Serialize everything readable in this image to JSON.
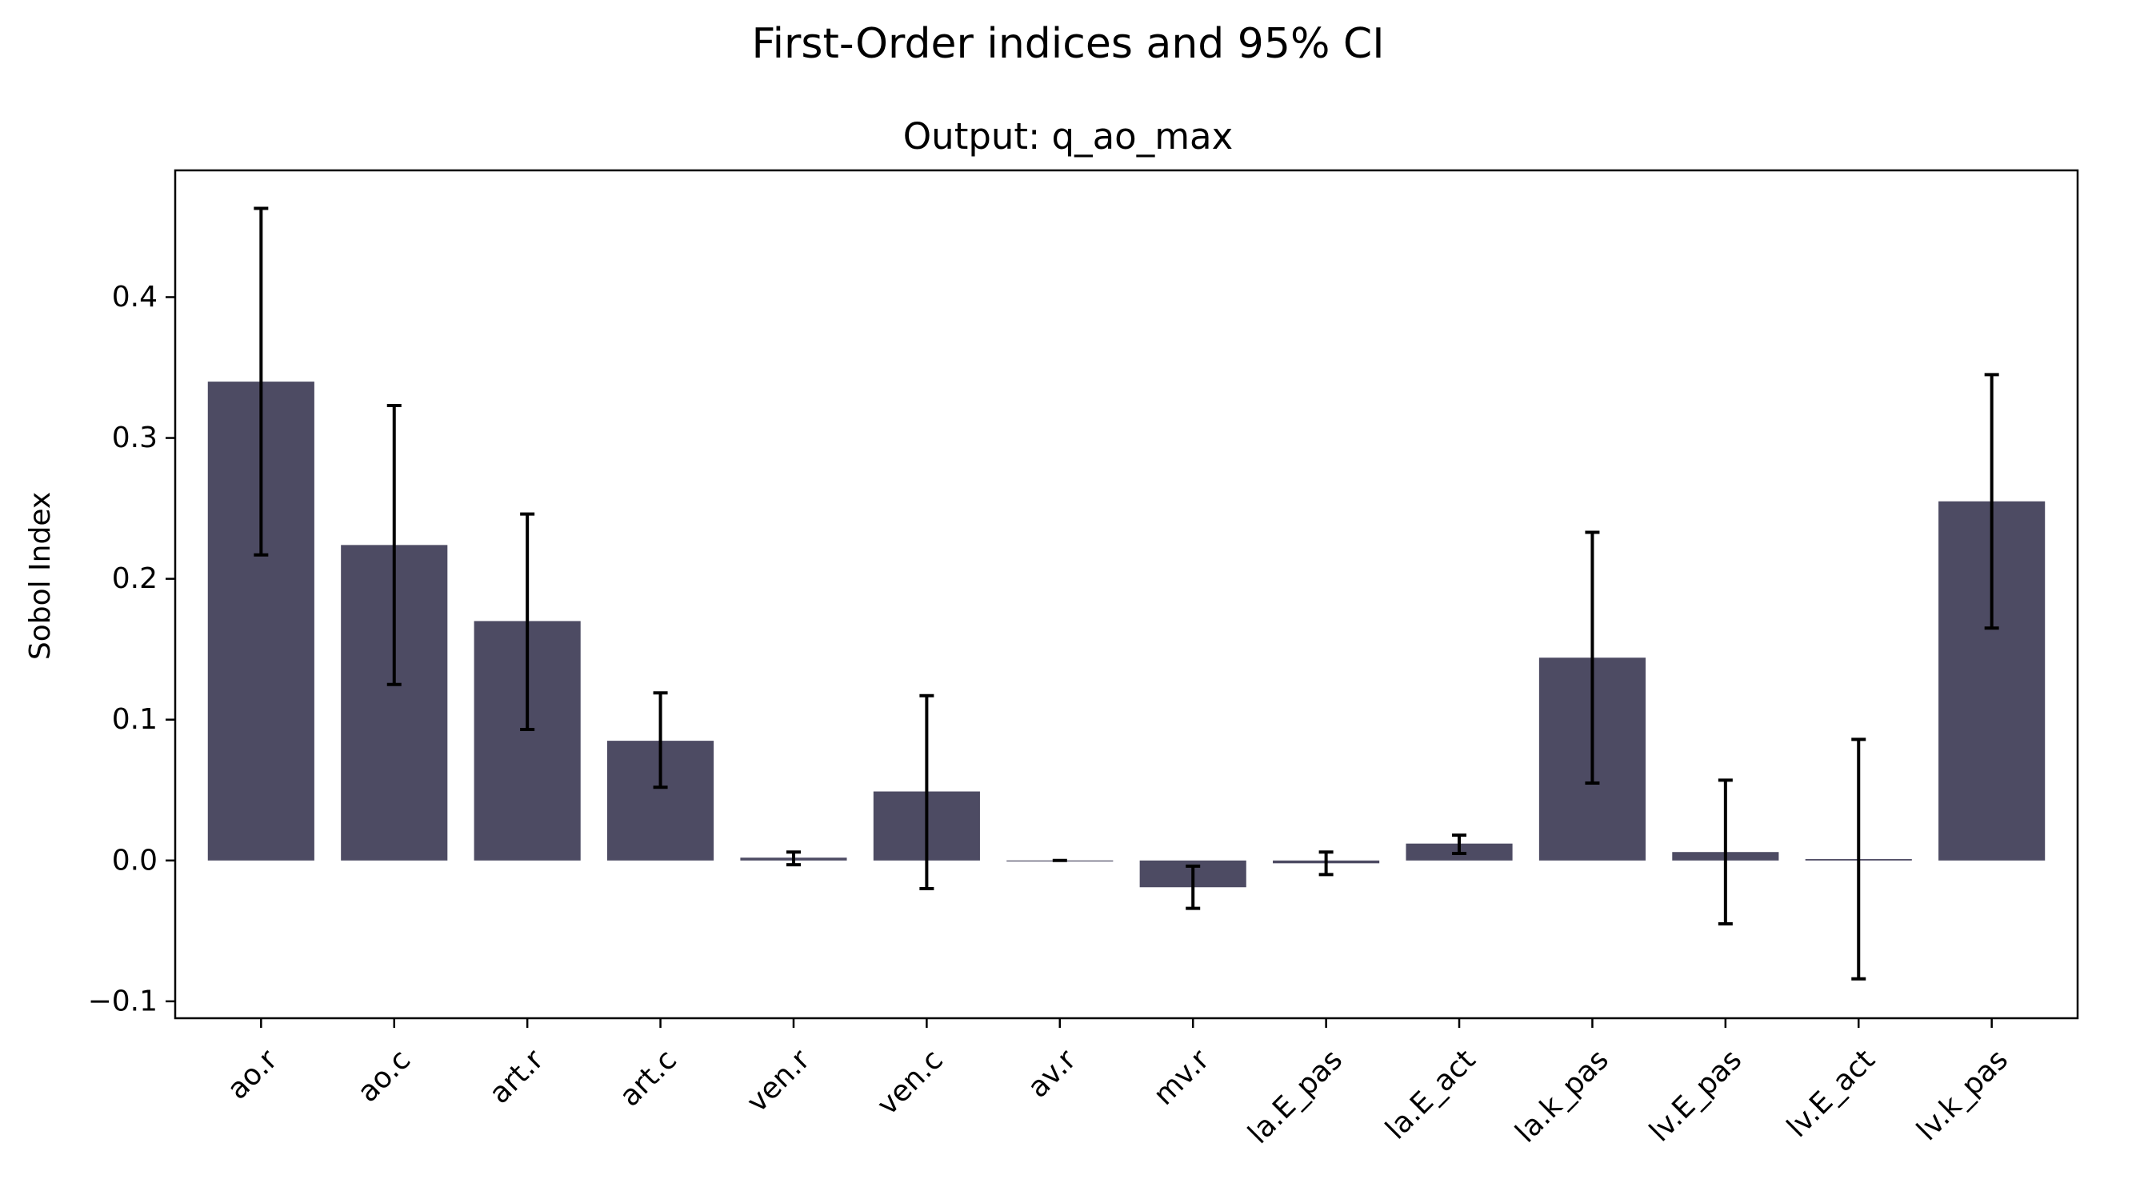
{
  "figure": {
    "suptitle": "First-Order indices and 95% CI"
  },
  "chart_data": {
    "type": "bar",
    "title": "Output: q_ao_max",
    "xlabel": "",
    "ylabel": "Sobol Index",
    "categories": [
      "ao.r",
      "ao.c",
      "art.r",
      "art.c",
      "ven.r",
      "ven.c",
      "av.r",
      "mv.r",
      "la.E_pas",
      "la.E_act",
      "la.k_pas",
      "lv.E_pas",
      "lv.E_act",
      "lv.k_pas"
    ],
    "values": [
      0.34,
      0.224,
      0.17,
      0.085,
      0.002,
      0.049,
      0.0,
      -0.019,
      -0.002,
      0.012,
      0.144,
      0.006,
      0.001,
      0.255
    ],
    "ci_lower": [
      0.217,
      0.125,
      0.093,
      0.052,
      -0.003,
      -0.02,
      0.0,
      -0.034,
      -0.01,
      0.005,
      0.055,
      -0.045,
      -0.084,
      0.165
    ],
    "ci_upper": [
      0.463,
      0.323,
      0.246,
      0.119,
      0.006,
      0.117,
      0.0,
      -0.004,
      0.006,
      0.018,
      0.233,
      0.057,
      0.086,
      0.345
    ],
    "ylim": [
      -0.112,
      0.49
    ],
    "yticks": [
      -0.1,
      0.0,
      0.1,
      0.2,
      0.3,
      0.4
    ],
    "ytick_labels": [
      "−0.1",
      "0.0",
      "0.1",
      "0.2",
      "0.3",
      "0.4"
    ],
    "bar_color": "#4d4b63",
    "errorbar_color": "#000000",
    "grid": false,
    "legend": "none"
  }
}
